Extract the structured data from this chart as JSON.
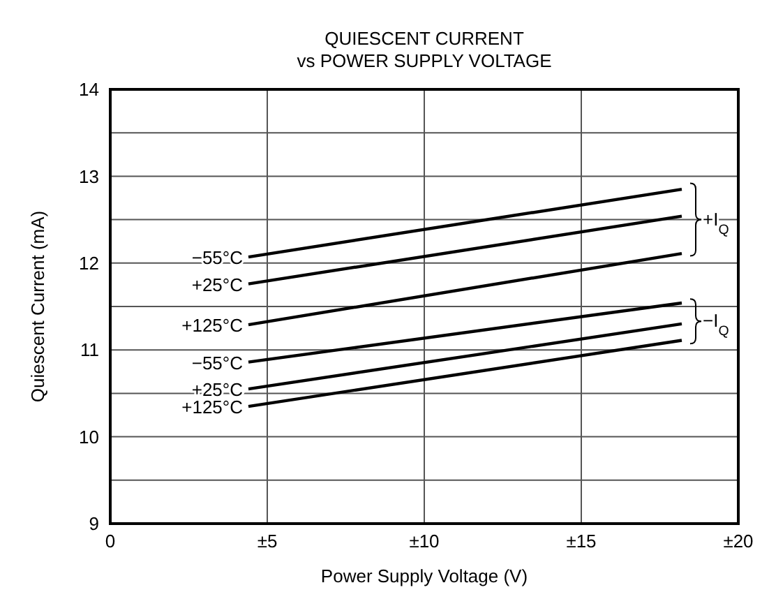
{
  "chart_data": {
    "type": "line",
    "title": "QUIESCENT CURRENT\nvs POWER SUPPLY VOLTAGE",
    "xlabel": "Power Supply Voltage (V)",
    "ylabel": "Quiescent Current (mA)",
    "x": [
      4.4,
      18.2
    ],
    "series": [
      {
        "name": "−55°C",
        "color": "#000000",
        "values": [
          12.07,
          12.85
        ]
      },
      {
        "name": "+25°C",
        "color": "#000000",
        "values": [
          11.76,
          12.54
        ]
      },
      {
        "name": "+125°C",
        "color": "#000000",
        "values": [
          11.29,
          12.11
        ]
      },
      {
        "name": "−55°C",
        "color": "#000000",
        "values": [
          10.86,
          11.54
        ]
      },
      {
        "name": "+25°C",
        "color": "#000000",
        "values": [
          10.55,
          11.3
        ]
      },
      {
        "name": "+125°C",
        "color": "#000000",
        "values": [
          10.35,
          11.11
        ]
      }
    ],
    "annotations": [
      {
        "text": "+I$_{Q}$",
        "x": 18.2,
        "y": 12.5
      },
      {
        "text": "−I$_{Q}$",
        "x": 18.2,
        "y": 11.33
      }
    ],
    "xlim": [
      0,
      20
    ],
    "xticks": [
      0,
      {
        "value": 5,
        "label": "±5"
      },
      {
        "value": 10,
        "label": "±10"
      },
      {
        "value": 15,
        "label": "±15"
      },
      {
        "value": 20,
        "label": "±20"
      }
    ],
    "ylim": [
      9,
      14
    ],
    "yticks": [
      9,
      {
        "value": 9.5,
        "label": null
      },
      10,
      {
        "value": 10.5,
        "label": null
      },
      11,
      {
        "value": 11.5,
        "label": null
      },
      12,
      {
        "value": 12.5,
        "label": null
      },
      13,
      {
        "value": 13.5,
        "label": null
      },
      14
    ],
    "grid": true,
    "marker": "none",
    "line_style": "solid"
  }
}
